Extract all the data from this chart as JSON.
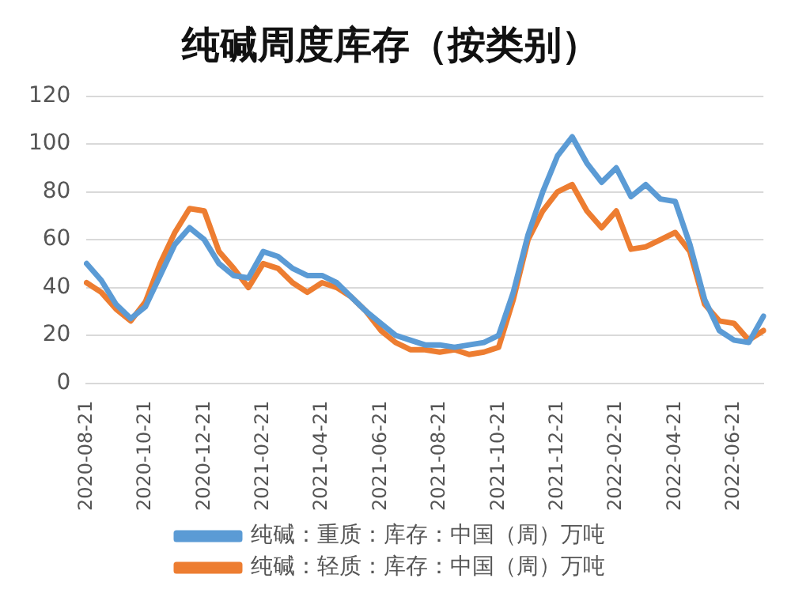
{
  "chart_data": {
    "type": "line",
    "title": "纯碱周度库存（按类别）",
    "categories": [
      "2020-08-21",
      null,
      null,
      null,
      "2020-10-21",
      null,
      null,
      null,
      "2020-12-21",
      null,
      null,
      null,
      "2021-02-21",
      null,
      null,
      null,
      "2021-04-21",
      null,
      null,
      null,
      "2021-06-21",
      null,
      null,
      null,
      "2021-08-21",
      null,
      null,
      null,
      "2021-10-21",
      null,
      null,
      null,
      "2021-12-21",
      null,
      null,
      null,
      "2022-02-21",
      null,
      null,
      null,
      "2022-04-21",
      null,
      null,
      null,
      "2022-06-21",
      null,
      null
    ],
    "series": [
      {
        "name": "纯碱：重质：库存：中国（周）万吨",
        "color": "#5b9bd5",
        "values": [
          50,
          43,
          33,
          27,
          32,
          45,
          58,
          65,
          60,
          50,
          45,
          44,
          55,
          53,
          48,
          45,
          45,
          42,
          36,
          30,
          25,
          20,
          18,
          16,
          16,
          15,
          16,
          17,
          20,
          38,
          62,
          80,
          95,
          103,
          92,
          84,
          90,
          78,
          83,
          77,
          76,
          58,
          35,
          22,
          18,
          17,
          28
        ]
      },
      {
        "name": "纯碱：轻质：库存：中国（周）万吨",
        "color": "#ed7d31",
        "values": [
          42,
          38,
          31,
          26,
          34,
          50,
          63,
          73,
          72,
          55,
          48,
          40,
          50,
          48,
          42,
          38,
          42,
          40,
          36,
          30,
          22,
          17,
          14,
          14,
          13,
          14,
          12,
          13,
          15,
          35,
          60,
          72,
          80,
          83,
          72,
          65,
          72,
          56,
          57,
          60,
          63,
          55,
          33,
          26,
          25,
          18,
          22
        ]
      }
    ],
    "ylim": [
      0,
      120
    ],
    "yticks": [
      0,
      20,
      40,
      60,
      80,
      100,
      120
    ],
    "grid": "y",
    "legend": "bottom",
    "marker": "none",
    "line_style": "solid"
  }
}
